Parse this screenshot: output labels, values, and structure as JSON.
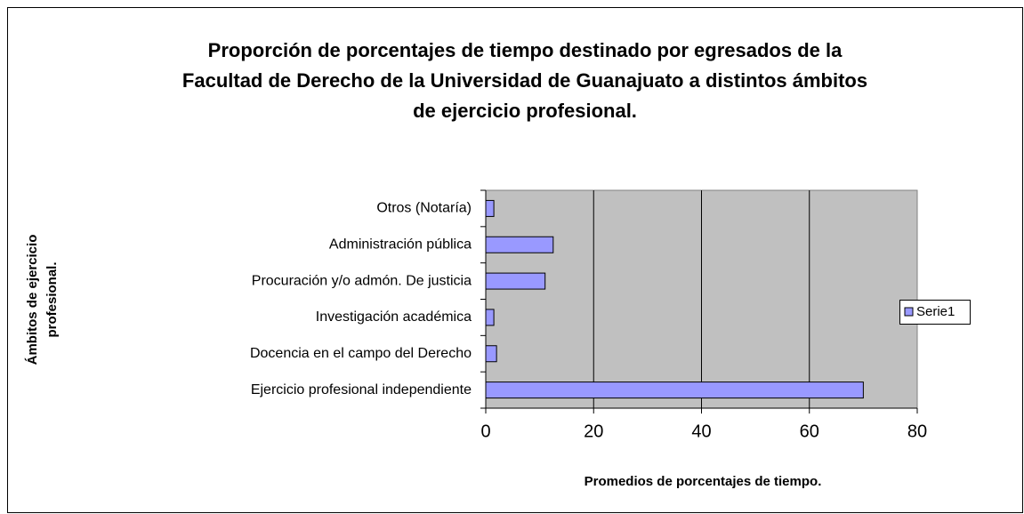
{
  "chart_data": {
    "type": "bar",
    "orientation": "horizontal",
    "title": [
      "Proporción de porcentajes de tiempo destinado por egresados de la",
      "Facultad de Derecho de la Universidad de Guanajuato a distintos ámbitos",
      "de ejercicio profesional."
    ],
    "xlabel": "Promedios de porcentajes de tiempo.",
    "ylabel": [
      "Ámbitos de ejercicio",
      "profesional."
    ],
    "categories": [
      "Ejercicio profesional independiente",
      "Docencia en el campo del Derecho",
      "Investigación académica",
      "Procuración y/o admón. De justicia",
      "Administración pública",
      "Otros (Notaría)"
    ],
    "series": [
      {
        "name": "Serie1",
        "color": "#9999ff",
        "values": [
          70,
          2,
          1.5,
          11,
          12.5,
          1.5
        ]
      }
    ],
    "xlim": [
      0,
      80
    ],
    "xticks": [
      0,
      20,
      40,
      60,
      80
    ],
    "grid": true,
    "legend": "right"
  }
}
